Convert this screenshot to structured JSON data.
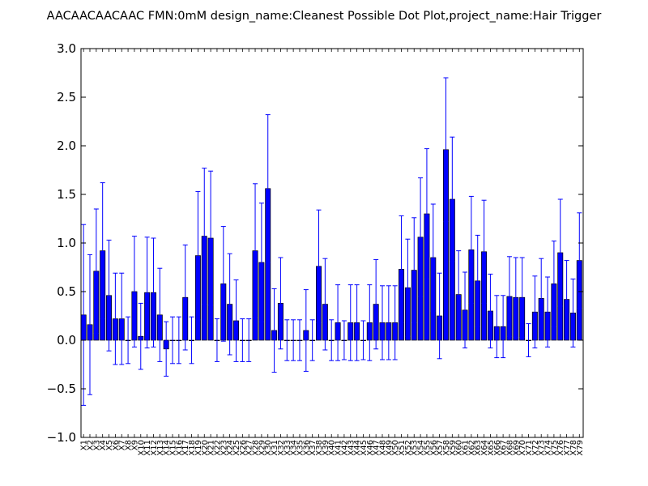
{
  "chart_data": {
    "type": "bar",
    "title": "AACAACAACAAC  FMN:0mM  design_name:Cleanest Possible Dot Plot,project_name:Hair Trigger",
    "xlabel": "",
    "ylabel": "",
    "ylim": [
      -1.0,
      3.0
    ],
    "yticks": [
      "3.0",
      "2.5",
      "2.0",
      "1.5",
      "1.0",
      "0.5",
      "0.0",
      "−0.5",
      "−1.0"
    ],
    "ytick_values": [
      3.0,
      2.5,
      2.0,
      1.5,
      1.0,
      0.5,
      0.0,
      -0.5,
      -1.0
    ],
    "grid": false,
    "colors": {
      "bar": "#0000ff",
      "error": "#0000ff",
      "axis": "#000000"
    },
    "categories": [
      "X1",
      "X2",
      "X3",
      "X4",
      "X5",
      "X6",
      "X7",
      "X8",
      "X9",
      "X10",
      "X11",
      "X12",
      "X13",
      "X14",
      "X15",
      "X16",
      "X17",
      "X18",
      "X19",
      "X20",
      "X21",
      "X22",
      "X23",
      "X24",
      "X25",
      "X26",
      "X27",
      "X28",
      "X29",
      "X30",
      "X31",
      "X32",
      "X33",
      "X34",
      "X35",
      "X36",
      "X37",
      "X38",
      "X39",
      "X40",
      "X41",
      "X42",
      "X43",
      "X44",
      "X45",
      "X46",
      "X47",
      "X48",
      "X49",
      "X50",
      "X51",
      "X52",
      "X53",
      "X54",
      "X55",
      "X56",
      "X57",
      "X58",
      "X59",
      "X60",
      "X61",
      "X62",
      "X63",
      "X64",
      "X65",
      "X66",
      "X67",
      "X68",
      "X69",
      "X70",
      "X71",
      "X72",
      "X73",
      "X74",
      "X75",
      "X76",
      "X77",
      "X78",
      "X79"
    ],
    "values": [
      0.26,
      0.16,
      0.71,
      0.92,
      0.46,
      0.22,
      0.22,
      0.0,
      0.5,
      0.04,
      0.49,
      0.49,
      0.26,
      -0.09,
      0.0,
      0.0,
      0.44,
      0.0,
      0.87,
      1.07,
      1.05,
      0.0,
      0.58,
      0.37,
      0.2,
      0.0,
      0.0,
      0.92,
      0.8,
      1.56,
      0.1,
      0.38,
      0.0,
      0.0,
      0.0,
      0.1,
      0.0,
      0.76,
      0.37,
      0.0,
      0.18,
      0.0,
      0.18,
      0.18,
      0.0,
      0.18,
      0.37,
      0.18,
      0.18,
      0.18,
      0.73,
      0.54,
      0.72,
      1.06,
      1.3,
      0.85,
      0.25,
      1.96,
      1.45,
      0.47,
      0.31,
      0.93,
      0.61,
      0.91,
      0.3,
      0.14,
      0.14,
      0.45,
      0.44,
      0.44,
      0.0,
      0.29,
      0.43,
      0.29,
      0.58,
      0.9,
      0.42,
      0.28,
      0.82
    ],
    "errors": [
      0.93,
      0.72,
      0.64,
      0.7,
      0.57,
      0.47,
      0.47,
      0.24,
      0.57,
      0.34,
      0.57,
      0.56,
      0.48,
      0.28,
      0.24,
      0.24,
      0.54,
      0.24,
      0.66,
      0.7,
      0.69,
      0.22,
      0.59,
      0.52,
      0.42,
      0.22,
      0.22,
      0.69,
      0.61,
      0.76,
      0.43,
      0.47,
      0.21,
      0.21,
      0.21,
      0.42,
      0.21,
      0.58,
      0.47,
      0.21,
      0.39,
      0.2,
      0.39,
      0.39,
      0.2,
      0.39,
      0.46,
      0.38,
      0.38,
      0.38,
      0.55,
      0.5,
      0.54,
      0.61,
      0.67,
      0.55,
      0.44,
      0.74,
      0.64,
      0.45,
      0.39,
      0.55,
      0.47,
      0.53,
      0.38,
      0.32,
      0.32,
      0.41,
      0.41,
      0.41,
      0.17,
      0.37,
      0.41,
      0.36,
      0.44,
      0.55,
      0.4,
      0.35,
      0.49
    ]
  }
}
